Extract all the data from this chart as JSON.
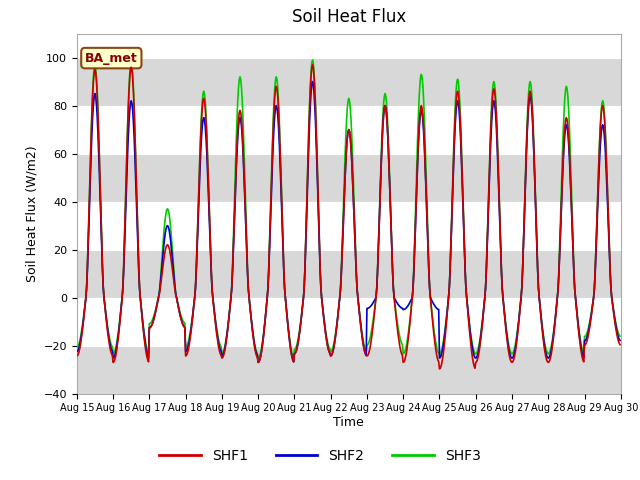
{
  "title": "Soil Heat Flux",
  "ylabel": "Soil Heat Flux (W/m2)",
  "xlabel": "Time",
  "ylim": [
    -40,
    110
  ],
  "yticks": [
    -40,
    -20,
    0,
    20,
    40,
    60,
    80,
    100
  ],
  "plot_bg_color": "#ffffff",
  "fig_bg_color": "#ffffff",
  "shf1_color": "#cc0000",
  "shf2_color": "#0000cc",
  "shf3_color": "#00cc00",
  "line_width": 1.2,
  "legend_label": "BA_met",
  "annotation_box_facecolor": "#ffffcc",
  "annotation_box_edgecolor": "#8b4513",
  "band_color": "#d8d8d8",
  "grid_color": "#cccccc",
  "n_days": 15,
  "day_amplitudes_shf1": [
    95,
    96,
    22,
    83,
    78,
    88,
    97,
    70,
    80,
    80,
    86,
    87,
    86,
    75,
    80
  ],
  "day_amplitudes_shf2": [
    85,
    82,
    30,
    75,
    75,
    80,
    90,
    70,
    80,
    78,
    82,
    82,
    84,
    72,
    72
  ],
  "day_amplitudes_shf3": [
    97,
    98,
    37,
    86,
    92,
    92,
    99,
    83,
    85,
    93,
    91,
    90,
    90,
    88,
    82
  ],
  "night_min_shf1": [
    -27,
    -30,
    -14,
    -27,
    -28,
    -30,
    -26,
    -27,
    -27,
    -30,
    -33,
    -30,
    -30,
    -30,
    -22
  ],
  "night_min_shf2": [
    -25,
    -28,
    -14,
    -25,
    -27,
    -30,
    -26,
    -27,
    -5,
    -28,
    -28,
    -28,
    -28,
    -28,
    -20
  ],
  "night_min_shf3": [
    -23,
    -26,
    -12,
    -23,
    -26,
    -28,
    -24,
    -25,
    -22,
    -26,
    -26,
    -26,
    -26,
    -26,
    -18
  ],
  "figsize": [
    6.4,
    4.8
  ],
  "dpi": 100
}
